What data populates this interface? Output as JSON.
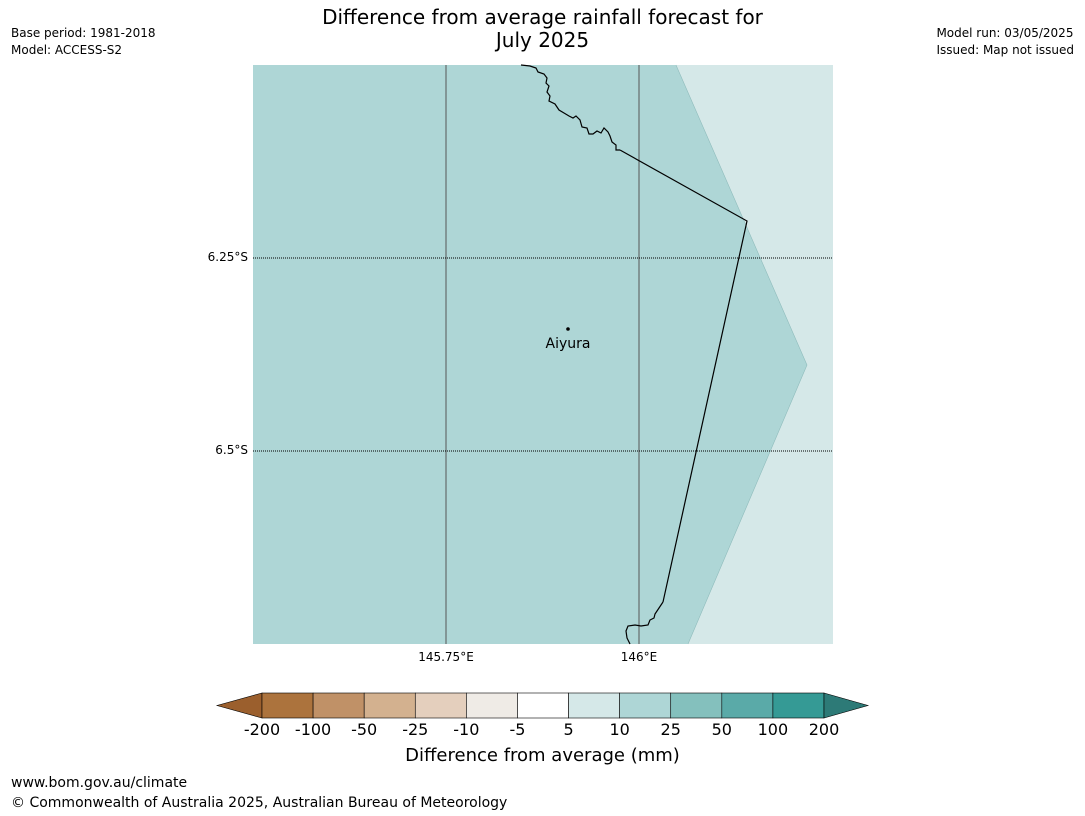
{
  "meta": {
    "base_period": "Base period: 1981-2018",
    "model": "Model: ACCESS-S2",
    "model_run": "Model run: 03/05/2025",
    "issued": "Issued: Map not issued"
  },
  "title": {
    "line1": "Difference from average rainfall forecast for",
    "line2": "July 2025"
  },
  "map": {
    "lat_labels": [
      "6.25°S",
      "6.5°S"
    ],
    "lon_labels": [
      "145.75°E",
      "146°E"
    ],
    "place": {
      "name": "Aiyura"
    },
    "fill_colors": {
      "range_10_25": "#aed6d6",
      "range_5_10": "#d5e8e8"
    }
  },
  "colorbar": {
    "ticks": [
      "-200",
      "-100",
      "-50",
      "-25",
      "-10",
      "-5",
      "5",
      "10",
      "25",
      "50",
      "100",
      "200"
    ],
    "colors": [
      "#9b5f2d",
      "#ac733d",
      "#c09167",
      "#d3b18f",
      "#e4cfbd",
      "#efebe6",
      "#ffffff",
      "#d5e8e8",
      "#aed6d6",
      "#84c0bd",
      "#5aaaa8",
      "#359a95",
      "#2d7a77"
    ],
    "label": "Difference from average (mm)"
  },
  "footer": {
    "url": "www.bom.gov.au/climate",
    "copyright": "© Commonwealth of Australia 2025, Australian Bureau of Meteorology"
  }
}
